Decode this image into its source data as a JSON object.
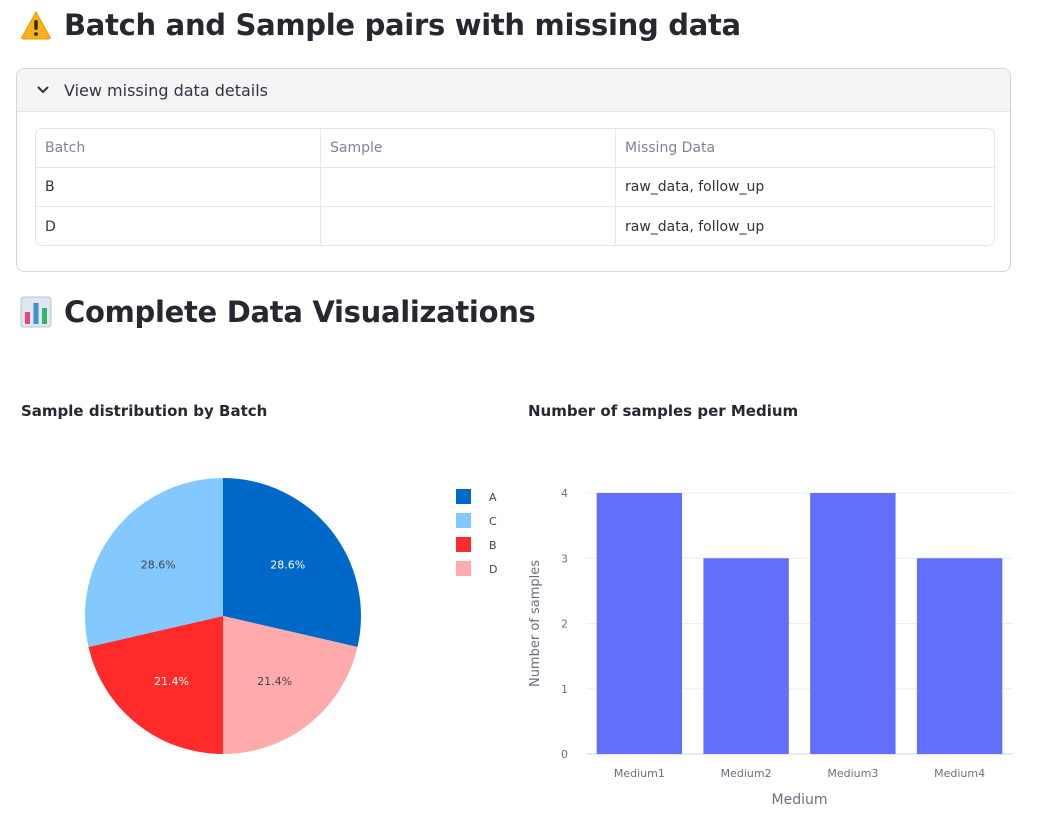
{
  "missing_section": {
    "title": "Batch and Sample pairs with missing data",
    "icon": "warning-icon",
    "expander_label": "View missing data details",
    "table": {
      "columns": [
        "Batch",
        "Sample",
        "Missing Data"
      ],
      "rows": [
        [
          "B",
          "",
          "raw_data, follow_up"
        ],
        [
          "D",
          "",
          "raw_data, follow_up"
        ]
      ]
    }
  },
  "viz_section": {
    "title": "Complete Data Visualizations",
    "icon": "bar-chart-icon"
  },
  "chart_data": [
    {
      "type": "pie",
      "title": "Sample distribution by Batch",
      "slices": [
        {
          "label": "A",
          "value": 28.6,
          "display": "28.6%",
          "color": "#0068c9"
        },
        {
          "label": "C",
          "value": 28.6,
          "display": "28.6%",
          "color": "#83c9ff"
        },
        {
          "label": "B",
          "value": 21.4,
          "display": "21.4%",
          "color": "#ff2b2b"
        },
        {
          "label": "D",
          "value": 21.4,
          "display": "21.4%",
          "color": "#ffabab"
        }
      ],
      "legend": [
        "A",
        "C",
        "B",
        "D"
      ],
      "legend_placement": "right"
    },
    {
      "type": "bar",
      "title": "Number of samples per Medium",
      "categories": [
        "Medium1",
        "Medium2",
        "Medium3",
        "Medium4"
      ],
      "values": [
        4,
        3,
        4,
        3
      ],
      "xlabel": "Medium",
      "ylabel": "Number of samples",
      "ylim": [
        0,
        4
      ],
      "yticks": [
        0,
        1,
        2,
        3,
        4
      ],
      "grid": true,
      "color": "#636efa"
    }
  ]
}
